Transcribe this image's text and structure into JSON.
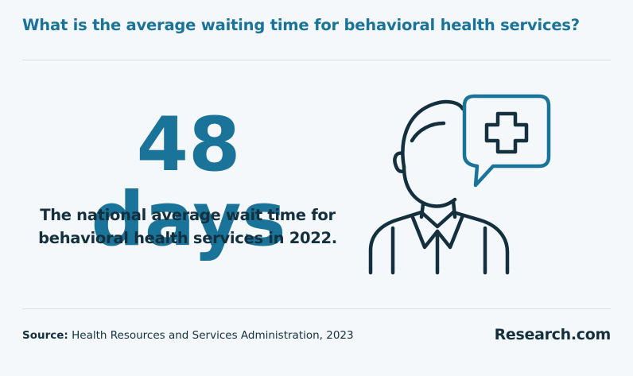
{
  "header": {
    "question": "What is the average waiting time for behavioral health services?"
  },
  "stat": {
    "value": "48 days",
    "description_line1": "The national average wait time for",
    "description_line2": "behavioral health services in 2022."
  },
  "illustration": {
    "icon": "doctor-with-medical-cross-speech-bubble-icon",
    "stroke_color": "#14303f",
    "accent_color": "#1a7399"
  },
  "footer": {
    "source_label": "Source:",
    "source_text": "Health Resources and Services Administration, 2023",
    "brand": "Research.com"
  },
  "colors": {
    "title": "#1a7399",
    "text": "#14303f",
    "background": "#f5f8fa",
    "divider": "#d9dfe3"
  }
}
